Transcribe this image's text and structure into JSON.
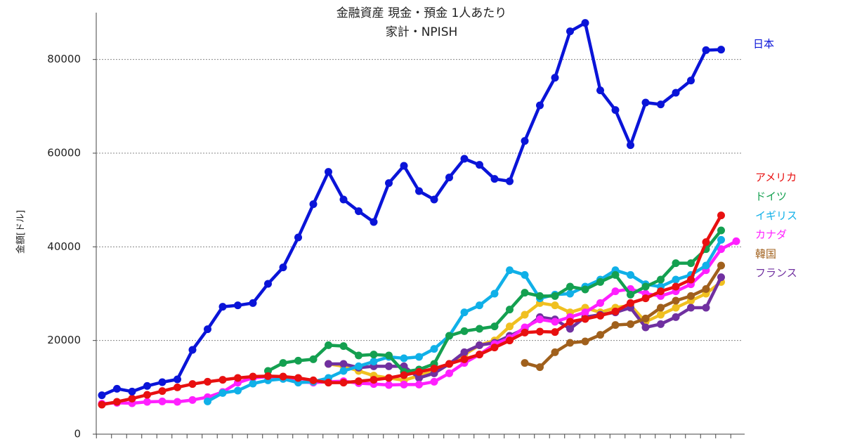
{
  "chart_data": {
    "type": "line",
    "title": "金融資産 現金・預金 1人あたり",
    "subtitle": "家計・NPISH",
    "y_label": "金額[ドル]",
    "categories": [
      null,
      null,
      null,
      null,
      null,
      null,
      null,
      null,
      null,
      null,
      null,
      null,
      null,
      null,
      null,
      null,
      null,
      null,
      null,
      null,
      null,
      null,
      null,
      null,
      null,
      null,
      null,
      null,
      null,
      null,
      null,
      null,
      null,
      null,
      null,
      null,
      null,
      null,
      null,
      null,
      null,
      null,
      null
    ],
    "ylim": [
      0,
      90000
    ],
    "yticks": [
      0,
      20000,
      40000,
      60000,
      80000
    ],
    "grid": true,
    "series": [
      {
        "name": "日本",
        "color": "#0a14d8",
        "values": [
          8300,
          9700,
          9100,
          10300,
          11100,
          11700,
          18000,
          22400,
          27200,
          27500,
          28000,
          32100,
          35600,
          42000,
          49100,
          56000,
          50100,
          47600,
          45300,
          53600,
          57300,
          51900,
          50100,
          54800,
          58800,
          57500,
          54500,
          54000,
          62600,
          70200,
          76100,
          86000,
          87800,
          73400,
          69200,
          61700,
          70800,
          70400,
          72900,
          75500,
          82000,
          82100,
          null
        ]
      },
      {
        "name": "アメリカ",
        "color": "#e81010",
        "values": [
          6300,
          6900,
          7600,
          8400,
          9200,
          10000,
          10700,
          11200,
          11600,
          12000,
          12300,
          12400,
          12300,
          12000,
          11500,
          11000,
          11000,
          11300,
          11600,
          12000,
          12600,
          13300,
          14000,
          15000,
          16000,
          17000,
          18500,
          20000,
          21700,
          21900,
          21800,
          24000,
          24600,
          25300,
          26200,
          28000,
          29000,
          30500,
          31500,
          33000,
          41000,
          46700,
          null
        ]
      },
      {
        "name": "ドイツ",
        "color": "#14a050",
        "values": [
          null,
          null,
          null,
          null,
          null,
          null,
          null,
          null,
          null,
          null,
          null,
          13500,
          15200,
          15700,
          16000,
          19000,
          18800,
          16800,
          17000,
          16800,
          13300,
          13800,
          15000,
          21000,
          22000,
          22500,
          23000,
          26600,
          30200,
          29500,
          29500,
          31500,
          30900,
          32500,
          34000,
          29800,
          31500,
          33000,
          36500,
          36500,
          39500,
          43500,
          null
        ]
      },
      {
        "name": "イギリス",
        "color": "#10b0e8",
        "values": [
          null,
          null,
          null,
          null,
          null,
          null,
          null,
          7000,
          8800,
          9300,
          10800,
          11500,
          11800,
          11000,
          11200,
          12000,
          13500,
          14500,
          15500,
          16500,
          16200,
          16500,
          18200,
          21000,
          26000,
          27500,
          30000,
          35000,
          34000,
          29000,
          29800,
          30000,
          31500,
          33000,
          35000,
          34000,
          32000,
          31500,
          33000,
          34000,
          36000,
          41500,
          null
        ]
      },
      {
        "name": "カナダ",
        "color": "#ff20ff",
        "values": [
          6500,
          6700,
          6600,
          6900,
          7000,
          6900,
          7300,
          7900,
          9000,
          11000,
          12000,
          12300,
          12000,
          11200,
          11000,
          11200,
          11300,
          10900,
          10700,
          10500,
          10600,
          10600,
          11200,
          13000,
          15200,
          17000,
          19200,
          20500,
          22800,
          24500,
          24000,
          25000,
          26000,
          28000,
          30500,
          31000,
          30000,
          29500,
          30500,
          32000,
          35000,
          39500,
          41200
        ]
      },
      {
        "name": "韓国",
        "color": "#a0601c",
        "values": [
          null,
          null,
          null,
          null,
          null,
          null,
          null,
          null,
          null,
          null,
          null,
          null,
          null,
          null,
          null,
          null,
          null,
          null,
          null,
          null,
          null,
          null,
          null,
          null,
          null,
          null,
          null,
          null,
          15200,
          14300,
          17500,
          19500,
          19800,
          21200,
          23300,
          23500,
          24700,
          27000,
          28500,
          29500,
          31000,
          36000,
          null
        ]
      },
      {
        "name": "フランス",
        "color": "#7030a0",
        "values": [
          null,
          null,
          null,
          null,
          null,
          null,
          null,
          null,
          null,
          null,
          null,
          null,
          null,
          null,
          null,
          15000,
          15000,
          14200,
          14500,
          14500,
          14500,
          12000,
          13000,
          15000,
          17500,
          19000,
          19500,
          21000,
          22500,
          25000,
          24500,
          22500,
          25000,
          25500,
          26000,
          27000,
          22800,
          23500,
          25000,
          27000,
          27000,
          33500,
          null
        ]
      },
      {
        "color": "#f0c020",
        "values": [
          null,
          null,
          null,
          null,
          null,
          null,
          null,
          null,
          null,
          null,
          null,
          null,
          null,
          null,
          null,
          15000,
          14500,
          13500,
          12500,
          12000,
          11500,
          12500,
          13500,
          15000,
          17000,
          19000,
          20000,
          23000,
          25500,
          28000,
          27500,
          26000,
          27000,
          26000,
          27000,
          27500,
          24000,
          25500,
          27000,
          28500,
          30000,
          32500,
          null
        ]
      }
    ]
  }
}
